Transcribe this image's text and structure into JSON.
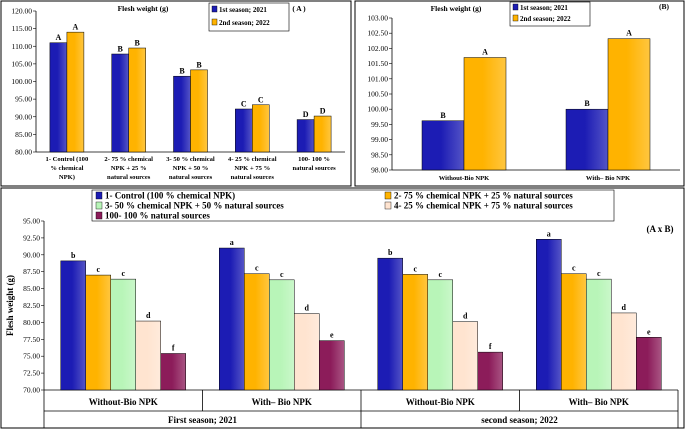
{
  "colors": {
    "season1": "#1c1cb4",
    "season2": "#ffb300",
    "t1": "#1c1cb4",
    "t2": "#ffb300",
    "t3": "#b8f5b8",
    "t4": "#ffe4d0",
    "t5": "#8c1c5a"
  },
  "chart_data": [
    {
      "id": "A",
      "type": "bar",
      "title": "Flesh weight (g)",
      "panel_label": "( A )",
      "ylabel": "",
      "ylim": [
        80,
        120
      ],
      "yticks": [
        "80.00",
        "85.00",
        "90.00",
        "95.00",
        "100.00",
        "105.00",
        "110.00",
        "115.00",
        "120.00"
      ],
      "categories": [
        [
          "1- Control (100",
          "% chemical",
          "NPK)"
        ],
        [
          "2- 75 % chemical",
          "NPK + 25 %",
          "natural sources"
        ],
        [
          "3- 50 % chemical",
          "NPK + 50 %",
          "natural sources"
        ],
        [
          "4- 25 % chemical",
          "NPK + 75 %",
          "natural sources"
        ],
        [
          "100- 100 %",
          "natural sources"
        ]
      ],
      "series": [
        {
          "name": "1st season; 2021",
          "values": [
            111.0,
            107.8,
            101.5,
            92.2,
            89.2
          ],
          "letters": [
            "A",
            "B",
            "B",
            "C",
            "D"
          ]
        },
        {
          "name": "2nd season; 2022",
          "values": [
            114.0,
            109.5,
            103.3,
            93.4,
            90.2
          ],
          "letters": [
            "A",
            "B",
            "B",
            "C",
            "D"
          ]
        }
      ]
    },
    {
      "id": "B",
      "type": "bar",
      "title": "Flesh weight (g)",
      "panel_label": "(B)",
      "ylabel": "",
      "ylim": [
        98,
        103
      ],
      "yticks": [
        "98.00",
        "98.50",
        "99.00",
        "99.50",
        "100.00",
        "100.50",
        "101.00",
        "101.50",
        "102.00",
        "102.50",
        "103.00"
      ],
      "categories": [
        [
          "Without-Bio NPK"
        ],
        [
          "With– Bio NPK"
        ]
      ],
      "series": [
        {
          "name": "1st season; 2021",
          "values": [
            99.62,
            100.0
          ],
          "letters": [
            "B",
            "B"
          ]
        },
        {
          "name": "2nd season; 2022",
          "values": [
            101.7,
            102.32
          ],
          "letters": [
            "A",
            "A"
          ]
        }
      ]
    },
    {
      "id": "AxB",
      "type": "bar",
      "title": "",
      "panel_label": "(A x B)",
      "ylabel": "Flesh weight (g)",
      "ylim": [
        70,
        95
      ],
      "yticks": [
        "70.00",
        "72.50",
        "75.00",
        "77.50",
        "80.00",
        "82.50",
        "85.00",
        "87.50",
        "90.00",
        "92.50",
        "95.00"
      ],
      "categories": [
        "Without-Bio NPK",
        "With– Bio NPK",
        "Without-Bio NPK",
        "With– Bio NPK"
      ],
      "groups": [
        "First season; 2021",
        "second season; 2022"
      ],
      "series": [
        {
          "name": "1- Control (100 % chemical NPK)",
          "values": [
            89.1,
            91.0,
            89.5,
            92.3
          ],
          "letters": [
            "b",
            "a",
            "b",
            "a"
          ]
        },
        {
          "name": "2- 75 % chemical NPK + 25 % natural sources",
          "values": [
            87.0,
            87.2,
            87.1,
            87.2
          ],
          "letters": [
            "c",
            "c",
            "c",
            "c"
          ]
        },
        {
          "name": "3- 50 % chemical NPK + 50 % natural sources",
          "values": [
            86.4,
            86.3,
            86.3,
            86.4
          ],
          "letters": [
            "c",
            "c",
            "c",
            "c"
          ]
        },
        {
          "name": "4- 25 % chemical NPK + 75 % natural sources",
          "values": [
            80.2,
            81.3,
            80.1,
            81.4
          ],
          "letters": [
            "d",
            "d",
            "d",
            "d"
          ]
        },
        {
          "name": "100- 100 % natural sources",
          "values": [
            75.4,
            77.3,
            75.6,
            77.8
          ],
          "letters": [
            "f",
            "e",
            "f",
            "e"
          ]
        }
      ]
    }
  ]
}
